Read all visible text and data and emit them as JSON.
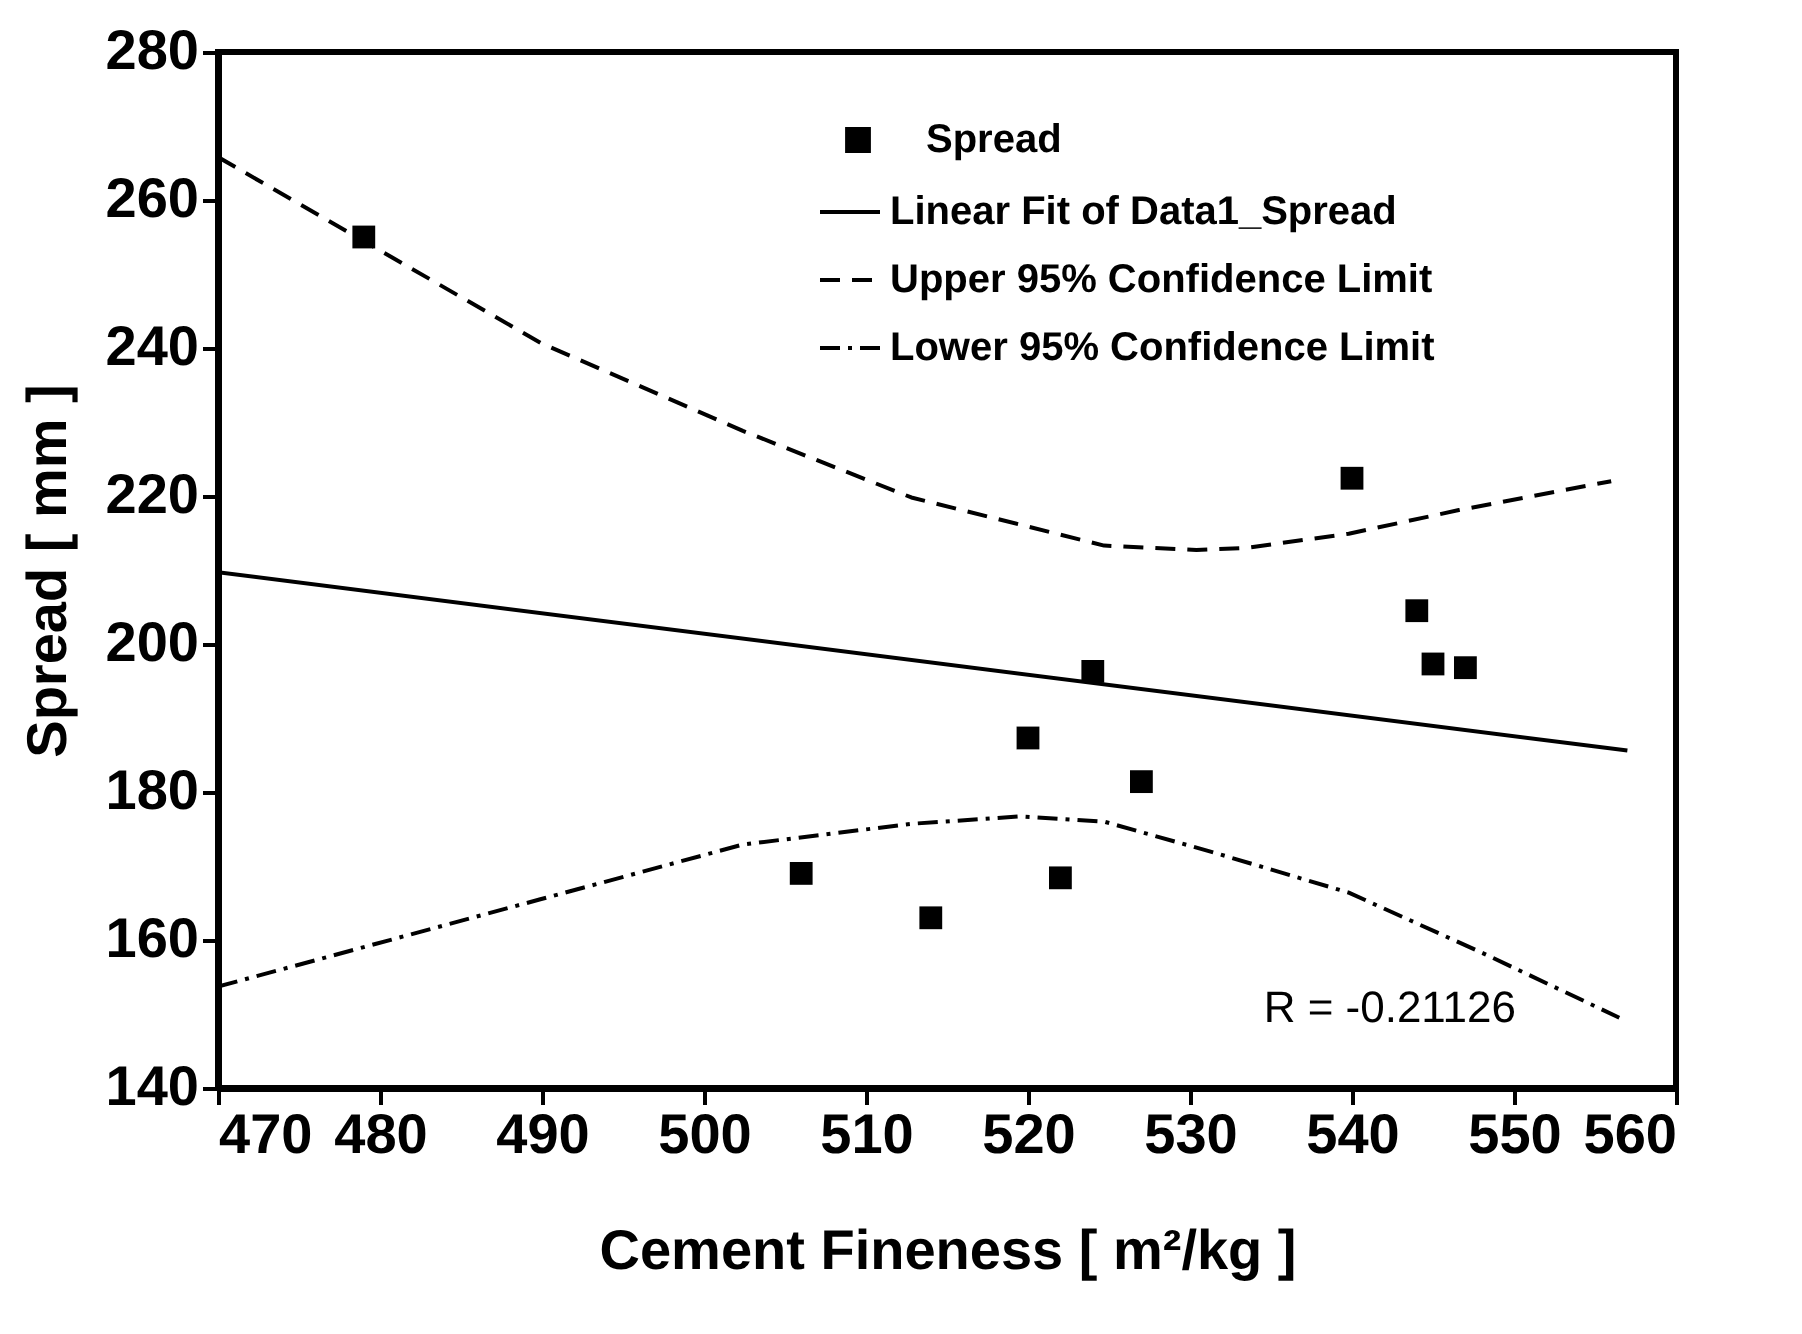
{
  "chart_data": {
    "type": "scatter",
    "xlabel": "Cement Fineness [ m²/kg ]",
    "ylabel": "Spread [ mm ]",
    "xlim": [
      470,
      560
    ],
    "xticks": [
      470,
      480,
      490,
      500,
      510,
      520,
      530,
      540,
      550,
      560
    ],
    "ylim": [
      140,
      280
    ],
    "yticks": [
      140,
      160,
      180,
      200,
      220,
      240,
      260,
      280
    ],
    "grid": false,
    "legend": "top right",
    "series": [
      {
        "name": "Spread",
        "marker": "square",
        "color": "#000000",
        "x": [
          479,
          506,
          514,
          520,
          522,
          524,
          527,
          540,
          544,
          545,
          547
        ],
        "values": [
          255,
          169,
          163,
          187.3,
          168.4,
          196.3,
          181.4,
          222.4,
          204.5,
          197.3,
          196.8
        ]
      },
      {
        "name": "Linear Fit of Data1_Spread",
        "type": "line",
        "line_style": "solid",
        "color": "#000000",
        "x": [
          470,
          557
        ],
        "values": [
          209.7,
          185.6
        ]
      },
      {
        "name": "Upper 95% Confidence Limit",
        "type": "line",
        "line_style": "dashed",
        "color": "#000000",
        "x": [
          470,
          489.9,
          502.4,
          512.8,
          524.7,
          530.4,
          533.5,
          539.8,
          546.6,
          556
        ],
        "values": [
          265.8,
          240.7,
          228.8,
          219.8,
          213.3,
          212.7,
          213,
          214.9,
          218.1,
          222
        ]
      },
      {
        "name": "Lower 95% Confidence Limit",
        "type": "line",
        "line_style": "dotted",
        "color": "#000000",
        "x": [
          470,
          489.9,
          502.4,
          512.8,
          519.5,
          524.7,
          531.5,
          539.8,
          548.1,
          556.5
        ],
        "values": [
          153.7,
          165.5,
          172.9,
          175.7,
          176.7,
          176,
          171.8,
          166.4,
          158.2,
          149.5
        ]
      }
    ],
    "annotations": [
      "R =  -0.21126"
    ]
  }
}
